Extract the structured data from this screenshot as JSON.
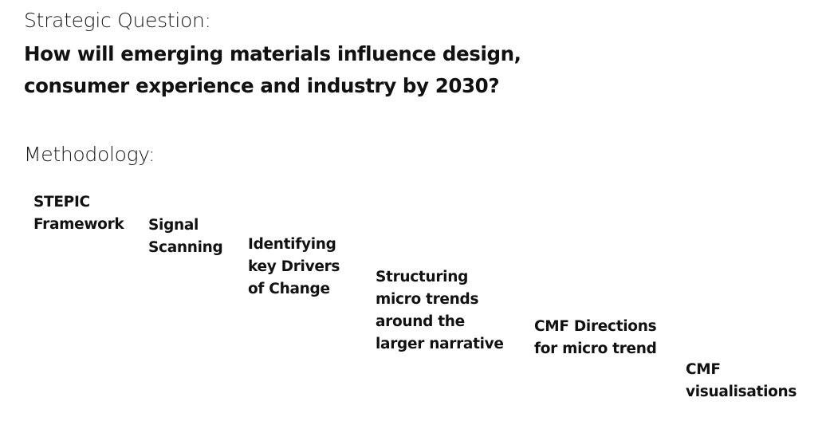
{
  "strategic_question": {
    "label": "Strategic Question:",
    "lines": [
      "How will emerging materials influence design,",
      "consumer experience and industry by 2030?"
    ]
  },
  "methodology": {
    "label": "Methodology:",
    "steps": [
      {
        "lines": [
          "STEPIC",
          "Framework"
        ]
      },
      {
        "lines": [
          "Signal",
          "Scanning"
        ]
      },
      {
        "lines": [
          "Identifying",
          "key Drivers",
          "of Change"
        ]
      },
      {
        "lines": [
          "Structuring",
          "micro trends",
          "around the",
          "larger narrative"
        ]
      },
      {
        "lines": [
          "CMF Directions",
          "for micro trend"
        ]
      },
      {
        "lines": [
          "CMF",
          "visualisations"
        ]
      }
    ]
  }
}
